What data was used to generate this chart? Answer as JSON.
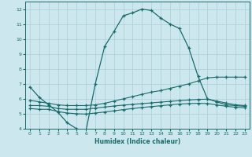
{
  "xlabel": "Humidex (Indice chaleur)",
  "xlim": [
    -0.5,
    23.5
  ],
  "ylim": [
    4,
    12.5
  ],
  "xticks": [
    0,
    1,
    2,
    3,
    4,
    5,
    6,
    7,
    8,
    9,
    10,
    11,
    12,
    13,
    14,
    15,
    16,
    17,
    18,
    19,
    20,
    21,
    22,
    23
  ],
  "yticks": [
    4,
    5,
    6,
    7,
    8,
    9,
    10,
    11,
    12
  ],
  "bg_color": "#cce8ee",
  "line_color": "#1a6b6b",
  "grid_color": "#aacdd6",
  "line1_x": [
    0,
    1,
    2,
    3,
    4,
    5,
    6,
    7,
    8,
    9,
    10,
    11,
    12,
    13,
    14,
    15,
    16,
    17,
    18,
    19,
    20,
    21,
    22,
    23
  ],
  "line1_y": [
    6.8,
    6.1,
    5.6,
    5.1,
    4.4,
    4.0,
    3.85,
    7.0,
    9.5,
    10.5,
    11.55,
    11.75,
    12.0,
    11.9,
    11.4,
    11.0,
    10.7,
    9.4,
    7.5,
    6.0,
    5.8,
    5.6,
    5.55,
    5.5
  ],
  "line2_x": [
    0,
    1,
    2,
    3,
    4,
    5,
    6,
    7,
    8,
    9,
    10,
    11,
    12,
    13,
    14,
    15,
    16,
    17,
    18,
    19,
    20,
    21,
    22,
    23
  ],
  "line2_y": [
    5.9,
    5.8,
    5.7,
    5.6,
    5.55,
    5.55,
    5.55,
    5.6,
    5.7,
    5.85,
    6.0,
    6.15,
    6.3,
    6.45,
    6.55,
    6.7,
    6.85,
    7.0,
    7.2,
    7.4,
    7.45,
    7.45,
    7.45,
    7.45
  ],
  "line3_x": [
    0,
    1,
    2,
    3,
    4,
    5,
    6,
    7,
    8,
    9,
    10,
    11,
    12,
    13,
    14,
    15,
    16,
    17,
    18,
    19,
    20,
    21,
    22,
    23
  ],
  "line3_y": [
    5.55,
    5.55,
    5.5,
    5.35,
    5.3,
    5.3,
    5.3,
    5.38,
    5.45,
    5.52,
    5.58,
    5.63,
    5.68,
    5.73,
    5.78,
    5.83,
    5.88,
    5.92,
    5.96,
    5.98,
    5.85,
    5.72,
    5.6,
    5.55
  ],
  "line4_x": [
    0,
    1,
    2,
    3,
    4,
    5,
    6,
    7,
    8,
    9,
    10,
    11,
    12,
    13,
    14,
    15,
    16,
    17,
    18,
    19,
    20,
    21,
    22,
    23
  ],
  "line4_y": [
    5.35,
    5.3,
    5.3,
    5.15,
    5.05,
    5.0,
    4.98,
    5.05,
    5.12,
    5.2,
    5.28,
    5.35,
    5.42,
    5.48,
    5.54,
    5.6,
    5.65,
    5.68,
    5.7,
    5.68,
    5.6,
    5.5,
    5.44,
    5.4
  ]
}
